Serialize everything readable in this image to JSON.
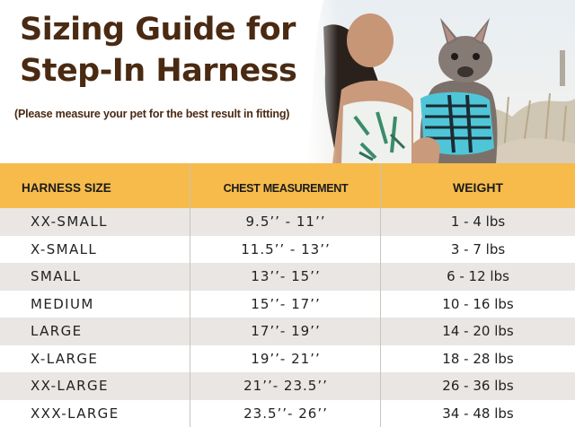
{
  "header": {
    "title_line1": "Sizing Guide for",
    "title_line2": "Step-In Harness",
    "subtitle": "(Please measure your pet for the best result in fitting)"
  },
  "table": {
    "columns": [
      "HARNESS SIZE",
      "CHEST MEASUREMENT",
      "WEIGHT"
    ],
    "rows": [
      {
        "size": "XX-SMALL",
        "chest": "9.5’’ -  11’’",
        "weight": "1 - 4 lbs"
      },
      {
        "size": "X-SMALL",
        "chest": "11.5’’ - 13’’",
        "weight": "3 - 7 lbs"
      },
      {
        "size": "SMALL",
        "chest": "13’’- 15’’",
        "weight": "6 - 12 lbs"
      },
      {
        "size": "MEDIUM",
        "chest": "15’’- 17’’",
        "weight": "10 - 16 lbs"
      },
      {
        "size": "LARGE",
        "chest": "17’’- 19’’",
        "weight": "14 - 20 lbs"
      },
      {
        "size": "X-LARGE",
        "chest": "19’’- 21’’",
        "weight": "18 - 28 lbs"
      },
      {
        "size": "XX-LARGE",
        "chest": "21’’- 23.5’’",
        "weight": "26 - 36 lbs"
      },
      {
        "size": "XXX-LARGE",
        "chest": "23.5’’- 26’’",
        "weight": "34 - 48 lbs"
      }
    ]
  },
  "colors": {
    "title": "#4a2a12",
    "header_bg": "#f6bb4a",
    "row_alt": "#e9e6e3",
    "harness": "#4fc6d8"
  },
  "photo": {
    "subject": "woman-holding-french-bulldog-in-harness"
  }
}
